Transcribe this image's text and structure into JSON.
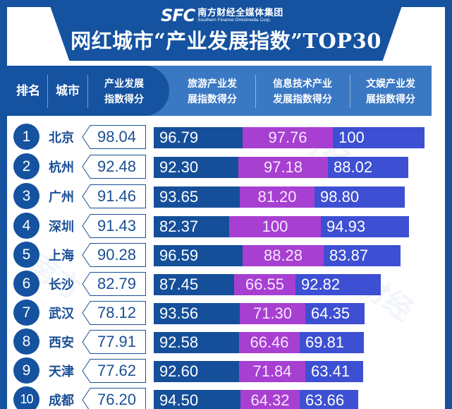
{
  "header": {
    "logo_mark": "SFC",
    "logo_cn": "南方财经全媒体集团",
    "logo_en": "Southern Finance Omnimedia Corp.",
    "title": "网红城市“产业发展指数”TOP30"
  },
  "columns": {
    "rank": "排名",
    "city": "城市",
    "overall": "产业发展\n指数得分",
    "tourism": "旅游产业发\n展指数得分",
    "it": "信息技术产业\n发展指数得分",
    "entertainment": "文娱产业发\n展指数得分"
  },
  "colors": {
    "brand_blue": "#1552a0",
    "header_light_blue": "#3a78c4",
    "tourism_bar": "#154f9a",
    "it_bar": "#a73fd1",
    "entertainment_bar": "#3d4fd2"
  },
  "rows": [
    {
      "rank": "1",
      "city": "北京",
      "overall": "98.04",
      "tourism": "96.79",
      "it": "97.76",
      "entertainment": "100"
    },
    {
      "rank": "2",
      "city": "杭州",
      "overall": "92.48",
      "tourism": "92.30",
      "it": "97.18",
      "entertainment": "88.02"
    },
    {
      "rank": "3",
      "city": "广州",
      "overall": "91.46",
      "tourism": "93.65",
      "it": "81.20",
      "entertainment": "98.80"
    },
    {
      "rank": "4",
      "city": "深圳",
      "overall": "91.43",
      "tourism": "82.37",
      "it": "100",
      "entertainment": "94.93"
    },
    {
      "rank": "5",
      "city": "上海",
      "overall": "90.28",
      "tourism": "96.59",
      "it": "88.28",
      "entertainment": "83.87"
    },
    {
      "rank": "6",
      "city": "长沙",
      "overall": "82.79",
      "tourism": "87.45",
      "it": "66.55",
      "entertainment": "92.82"
    },
    {
      "rank": "7",
      "city": "武汉",
      "overall": "78.12",
      "tourism": "93.56",
      "it": "71.30",
      "entertainment": "64.35"
    },
    {
      "rank": "8",
      "city": "西安",
      "overall": "77.91",
      "tourism": "92.58",
      "it": "66.46",
      "entertainment": "69.81"
    },
    {
      "rank": "9",
      "city": "天津",
      "overall": "77.62",
      "tourism": "92.60",
      "it": "71.84",
      "entertainment": "63.41"
    },
    {
      "rank": "10",
      "city": "成都",
      "overall": "76.20",
      "tourism": "94.50",
      "it": "64.32",
      "entertainment": "63.66"
    }
  ],
  "chart_data": {
    "type": "bar",
    "stacked": true,
    "orientation": "horizontal",
    "title": "网红城市“产业发展指数”TOP30",
    "categories": [
      "北京",
      "杭州",
      "广州",
      "深圳",
      "上海",
      "长沙",
      "武汉",
      "西安",
      "天津",
      "成都"
    ],
    "ranks": [
      1,
      2,
      3,
      4,
      5,
      6,
      7,
      8,
      9,
      10
    ],
    "overall_scores": [
      98.04,
      92.48,
      91.46,
      91.43,
      90.28,
      82.79,
      78.12,
      77.91,
      77.62,
      76.2
    ],
    "series": [
      {
        "name": "旅游产业发展指数得分",
        "color": "#154f9a",
        "values": [
          96.79,
          92.3,
          93.65,
          82.37,
          96.59,
          87.45,
          93.56,
          92.58,
          92.6,
          94.5
        ]
      },
      {
        "name": "信息技术产业发展指数得分",
        "color": "#a73fd1",
        "values": [
          97.76,
          97.18,
          81.2,
          100,
          88.28,
          66.55,
          71.3,
          66.46,
          71.84,
          64.32
        ]
      },
      {
        "name": "文娱产业发展指数得分",
        "color": "#3d4fd2",
        "values": [
          100,
          88.02,
          98.8,
          94.93,
          83.87,
          92.82,
          64.35,
          69.81,
          63.41,
          63.66
        ]
      }
    ],
    "xlabel": "",
    "ylabel": "",
    "legend_position": "top (column headers)"
  }
}
